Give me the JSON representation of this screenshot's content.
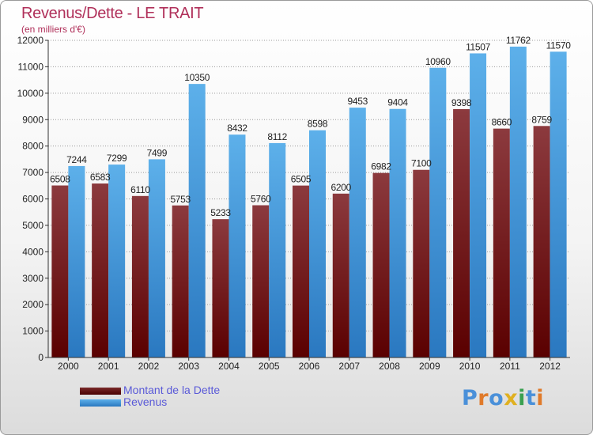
{
  "title": "Revenus/Dette - LE TRAIT",
  "subtitle": "(en milliers d'€)",
  "legend": {
    "debt_label": "Montant de la Dette",
    "revenue_label": "Revenus"
  },
  "logo": {
    "text": "Proxiti",
    "letters": [
      "P",
      "r",
      "o",
      "x",
      "i",
      "t",
      "i"
    ],
    "colors": [
      "#4a90d9",
      "#e07a2a",
      "#4a90d9",
      "#e0b020",
      "#3aa050",
      "#4a90d9",
      "#e07a2a"
    ]
  },
  "colors": {
    "debt_top": "#8c3a3e",
    "debt_bottom": "#5a0000",
    "revenue_top": "#5db0ea",
    "revenue_bottom": "#2a78c0",
    "title": "#b0305a",
    "legend_text": "#5a5ad8"
  },
  "chart_data": {
    "type": "bar",
    "categories": [
      "2000",
      "2001",
      "2002",
      "2003",
      "2004",
      "2005",
      "2006",
      "2007",
      "2008",
      "2009",
      "2010",
      "2011",
      "2012"
    ],
    "series": [
      {
        "name": "Montant de la Dette",
        "values": [
          6508,
          6583,
          6110,
          5753,
          5233,
          5760,
          6505,
          6200,
          6982,
          7100,
          9398,
          8660,
          8759
        ]
      },
      {
        "name": "Revenus",
        "values": [
          7244,
          7299,
          7499,
          10350,
          8432,
          8112,
          8598,
          9453,
          9404,
          10960,
          11507,
          11762,
          11570
        ]
      }
    ],
    "ylim": [
      0,
      12000
    ],
    "yticks": [
      0,
      1000,
      2000,
      3000,
      4000,
      5000,
      6000,
      7000,
      8000,
      9000,
      10000,
      11000,
      12000
    ],
    "grid": true,
    "legend_position": "bottom-left"
  }
}
